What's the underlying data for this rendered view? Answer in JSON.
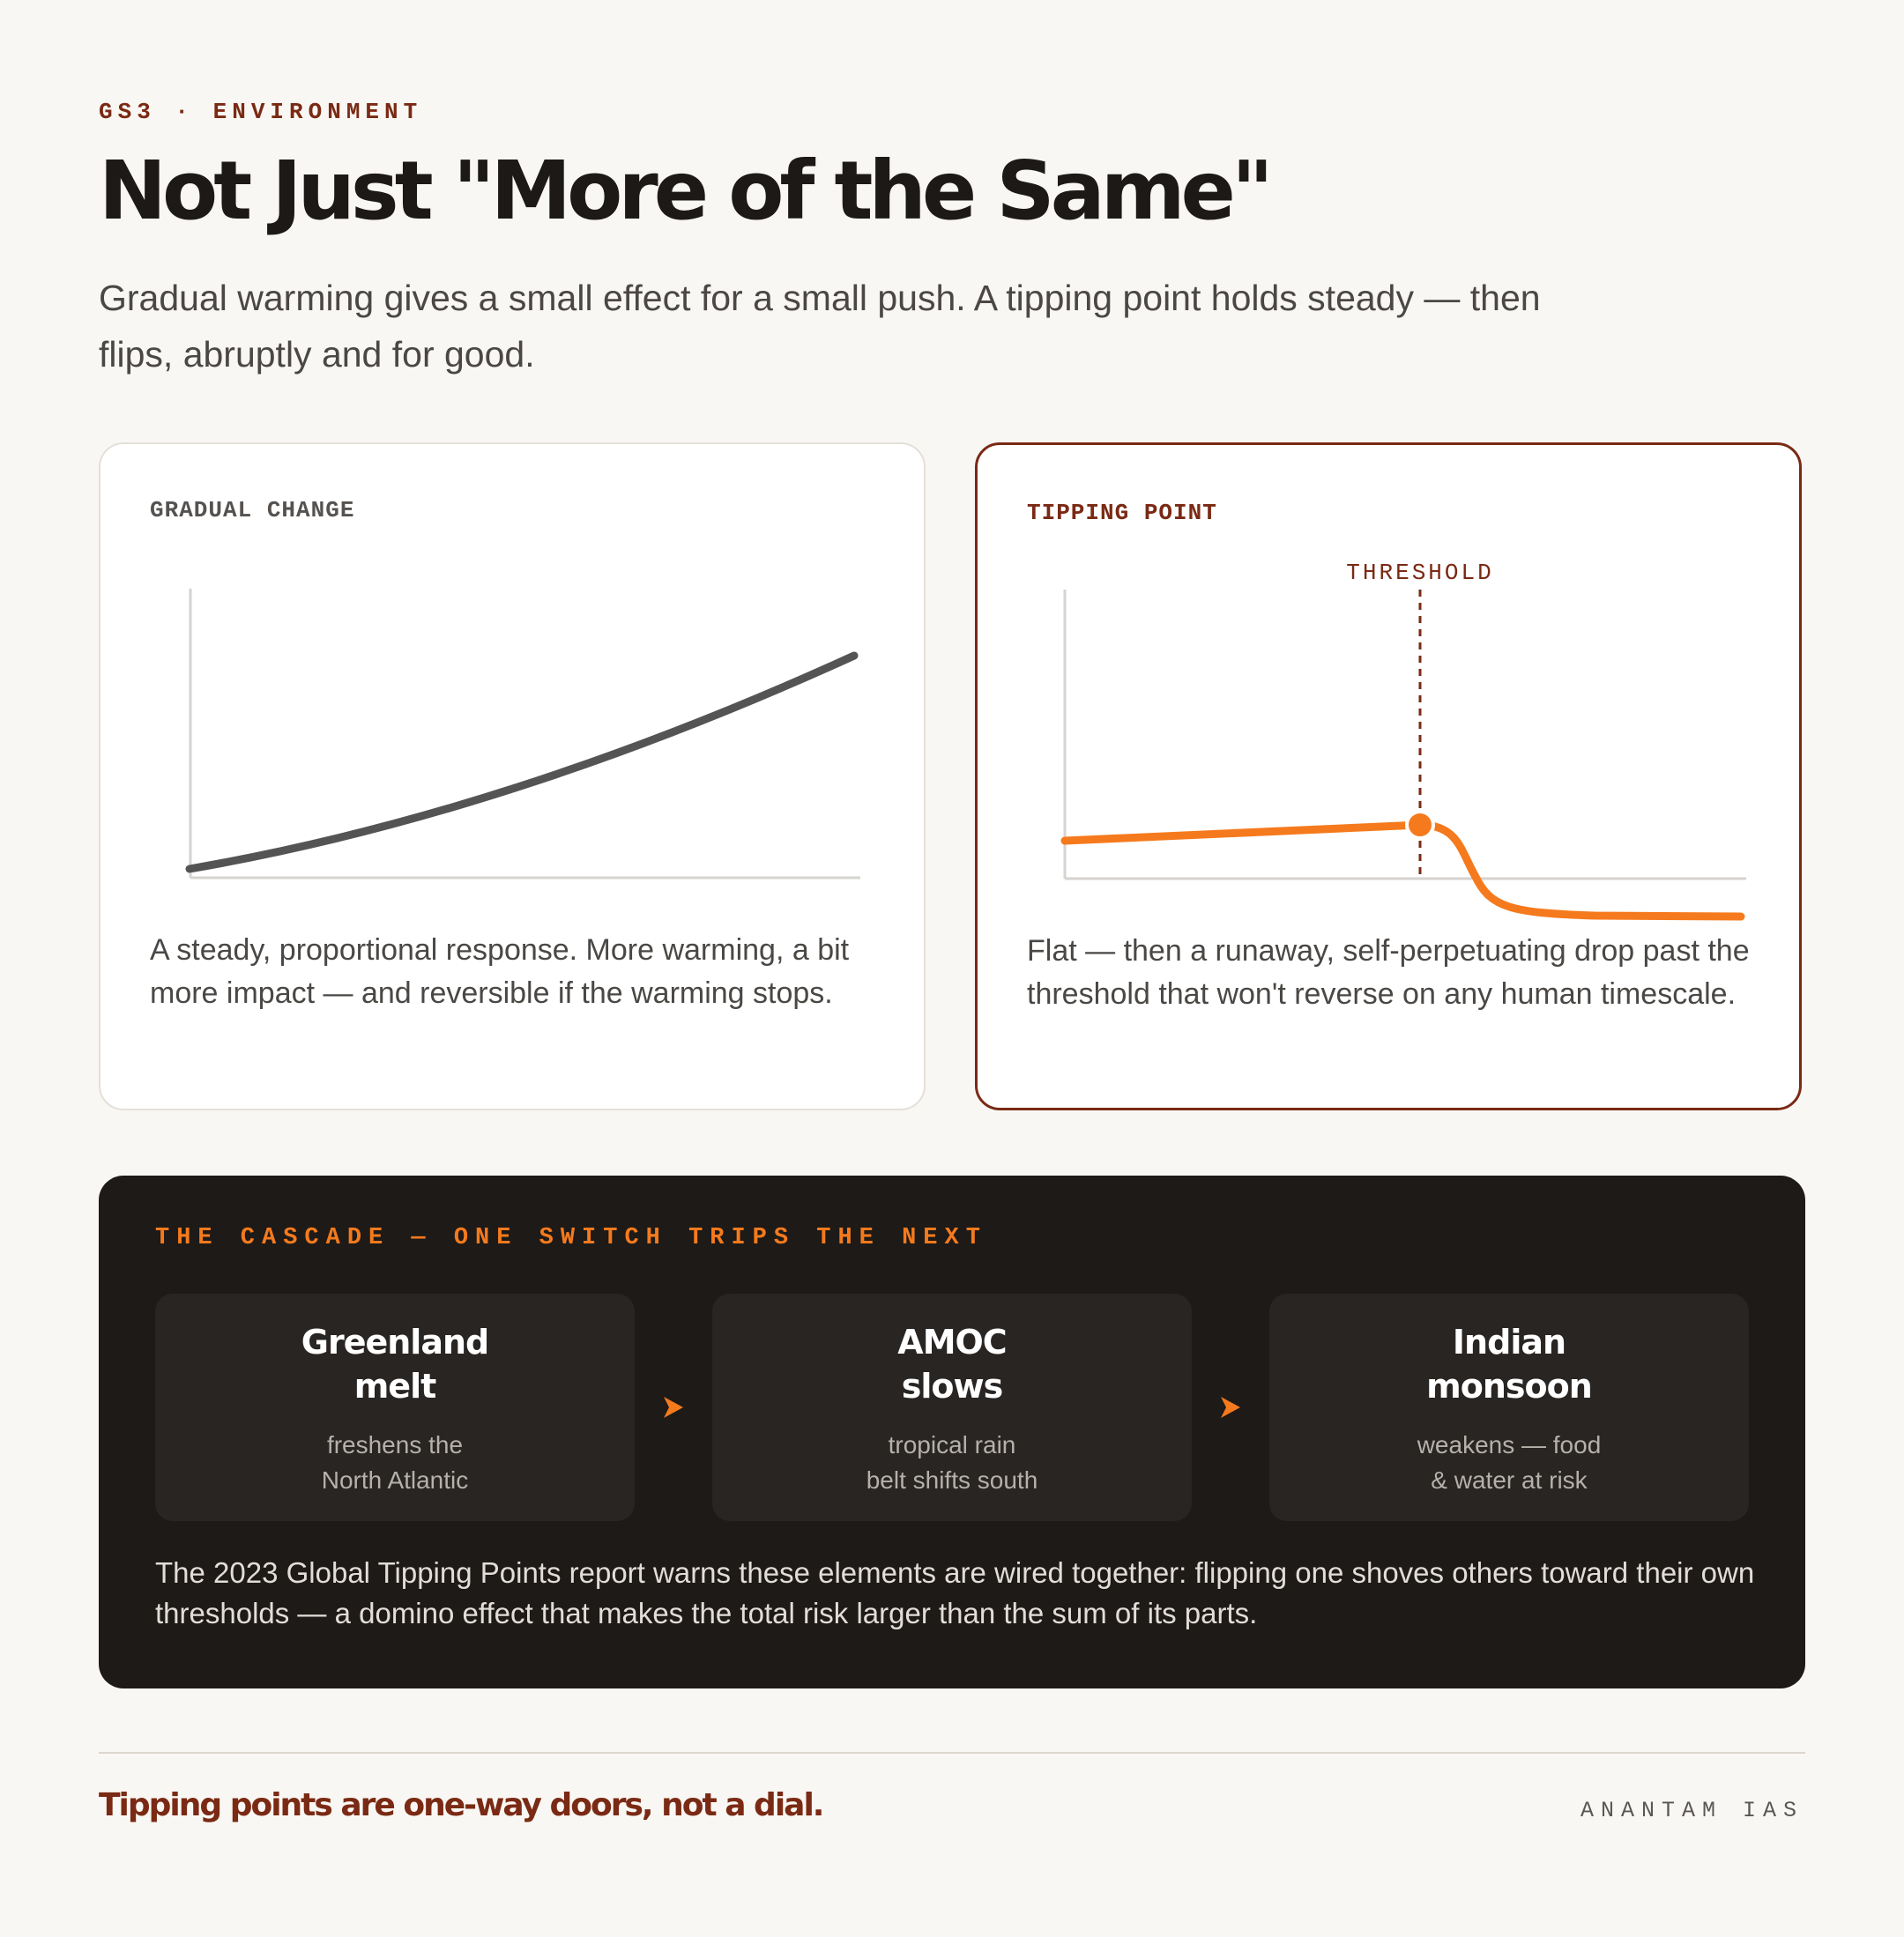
{
  "header": {
    "kicker": "GS3 · ENVIRONMENT",
    "title": "Not Just \"More of the Same\"",
    "subtitle": "Gradual warming gives a small effect for a small push. A tipping point holds steady — then flips, abruptly and for good."
  },
  "gradual_card": {
    "label": "GRADUAL CHANGE",
    "description": "A steady, proportional response. More warming, a bit more impact — and reversible if the warming stops.",
    "line_color": "#545454"
  },
  "tipping_card": {
    "label": "TIPPING POINT",
    "threshold_label": "THRESHOLD",
    "description": "Flat — then a runaway, self-perpetuating drop past the threshold that won't reverse on any human timescale.",
    "accent_color": "#f57a1d",
    "border_color": "#7a2a14"
  },
  "cascade": {
    "title": "THE CASCADE — ONE SWITCH TRIPS THE NEXT",
    "steps": [
      {
        "title": "Greenland\nmelt",
        "description": "freshens the\nNorth Atlantic"
      },
      {
        "title": "AMOC\nslows",
        "description": "tropical rain\nbelt shifts south"
      },
      {
        "title": "Indian\nmonsoon",
        "description": "weakens — food\n& water at risk"
      }
    ],
    "arrow_icon": "chevron-right-icon",
    "note": "The 2023 Global Tipping Points report warns these elements are wired together: flipping one shoves others toward their own thresholds — a domino effect that makes the total risk larger than the sum of its parts."
  },
  "footer": {
    "tagline": "Tipping points are one-way doors, not a dial.",
    "brand": "ANANTAM IAS"
  }
}
